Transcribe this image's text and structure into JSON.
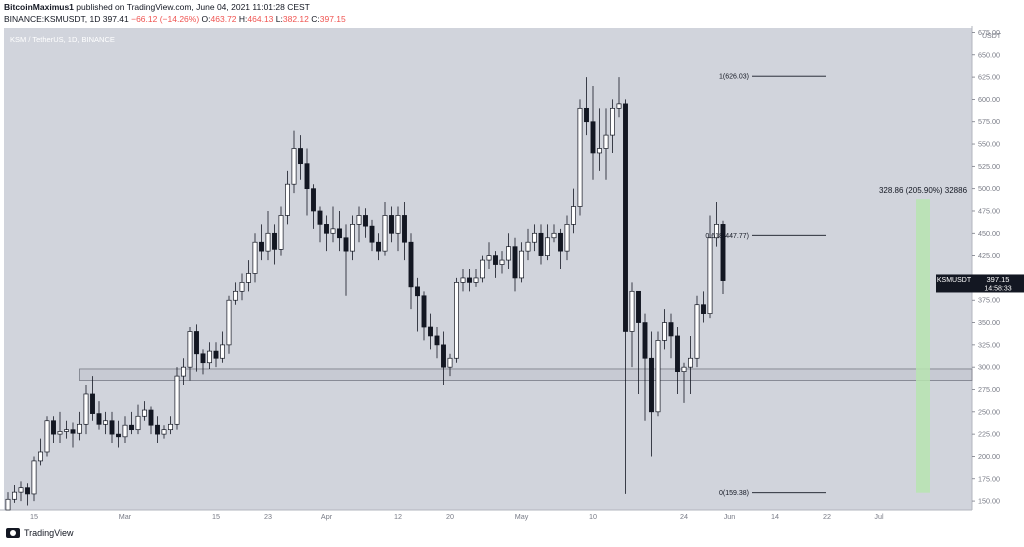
{
  "header": {
    "author": "BitcoinMaximus1",
    "published": "published on TradingView.com, June 04, 2021 11:01:28 CEST",
    "symbol": "BINANCE:KSMUSDT, 1D",
    "price": "397.41",
    "change": "−66.12 (−14.26%)",
    "o_label": "O:",
    "o_value": "463.72",
    "h_label": "H:",
    "h_value": "464.13",
    "l_label": "L:",
    "l_value": "382.12",
    "c_label": "C:",
    "c_value": "397.15"
  },
  "chart_data": {
    "type": "candlestick",
    "title": "KSM / TetherUS, 1D, BINANCE",
    "currency_label": "USDT",
    "y_ticks": [
      150,
      175,
      200,
      225,
      250,
      275,
      300,
      325,
      350,
      375,
      400,
      425,
      450,
      475,
      500,
      525,
      550,
      575,
      600,
      625,
      650,
      675
    ],
    "y_tick_labels": [
      "150.00",
      "175.00",
      "200.00",
      "225.00",
      "250.00",
      "275.00",
      "300.00",
      "325.00",
      "350.00",
      "375.00",
      "400.00",
      "425.00",
      "450.00",
      "475.00",
      "500.00",
      "525.00",
      "550.00",
      "575.00",
      "600.00",
      "625.00",
      "650.00",
      "675.00"
    ],
    "ylim": [
      140,
      680
    ],
    "x_ticks": [
      {
        "day": 0,
        "label": "15"
      },
      {
        "day": 14,
        "label": "Mar"
      },
      {
        "day": 28,
        "label": "15"
      },
      {
        "day": 36,
        "label": "23"
      },
      {
        "day": 45,
        "label": "Apr"
      },
      {
        "day": 56,
        "label": "12"
      },
      {
        "day": 64,
        "label": "20"
      },
      {
        "day": 75,
        "label": "May"
      },
      {
        "day": 86,
        "label": "10"
      },
      {
        "day": 100,
        "label": "24"
      },
      {
        "day": 107,
        "label": "Jun"
      },
      {
        "day": 114,
        "label": "14"
      },
      {
        "day": 122,
        "label": "22"
      },
      {
        "day": 130,
        "label": "Jul"
      }
    ],
    "x_range": [
      0,
      130
    ],
    "candles": [
      [
        140,
        152,
        160,
        140
      ],
      [
        152,
        160,
        168,
        148
      ],
      [
        160,
        165,
        172,
        150
      ],
      [
        165,
        158,
        170,
        145
      ],
      [
        158,
        195,
        200,
        150
      ],
      [
        195,
        205,
        220,
        190
      ],
      [
        205,
        240,
        245,
        200
      ],
      [
        240,
        225,
        245,
        215
      ],
      [
        225,
        228,
        250,
        215
      ],
      [
        228,
        230,
        240,
        220
      ],
      [
        230,
        226,
        238,
        210
      ],
      [
        226,
        236,
        250,
        218
      ],
      [
        236,
        270,
        280,
        225
      ],
      [
        270,
        248,
        290,
        240
      ],
      [
        248,
        236,
        262,
        230
      ],
      [
        236,
        240,
        250,
        225
      ],
      [
        240,
        225,
        250,
        215
      ],
      [
        225,
        222,
        240,
        210
      ],
      [
        222,
        235,
        245,
        215
      ],
      [
        235,
        230,
        250,
        225
      ],
      [
        230,
        245,
        258,
        225
      ],
      [
        245,
        252,
        262,
        240
      ],
      [
        252,
        235,
        256,
        225
      ],
      [
        235,
        225,
        245,
        215
      ],
      [
        225,
        230,
        235,
        220
      ],
      [
        230,
        236,
        245,
        225
      ],
      [
        236,
        290,
        300,
        230
      ],
      [
        290,
        300,
        310,
        280
      ],
      [
        300,
        340,
        345,
        285
      ],
      [
        340,
        315,
        348,
        295
      ],
      [
        315,
        305,
        320,
        292
      ],
      [
        305,
        318,
        328,
        298
      ],
      [
        318,
        310,
        328,
        300
      ],
      [
        310,
        325,
        340,
        305
      ],
      [
        325,
        375,
        380,
        315
      ],
      [
        375,
        385,
        395,
        370
      ],
      [
        385,
        395,
        405,
        375
      ],
      [
        395,
        405,
        420,
        385
      ],
      [
        405,
        440,
        450,
        395
      ],
      [
        440,
        430,
        460,
        420
      ],
      [
        430,
        450,
        475,
        420
      ],
      [
        450,
        432,
        460,
        415
      ],
      [
        432,
        470,
        480,
        425
      ],
      [
        470,
        505,
        520,
        460
      ],
      [
        505,
        545,
        565,
        495
      ],
      [
        545,
        528,
        560,
        510
      ],
      [
        528,
        500,
        545,
        470
      ],
      [
        500,
        475,
        505,
        455
      ],
      [
        475,
        460,
        480,
        440
      ],
      [
        460,
        450,
        470,
        430
      ],
      [
        450,
        455,
        480,
        440
      ],
      [
        455,
        445,
        475,
        430
      ],
      [
        445,
        430,
        460,
        380
      ],
      [
        430,
        460,
        470,
        420
      ],
      [
        460,
        470,
        480,
        440
      ],
      [
        470,
        458,
        478,
        445
      ],
      [
        458,
        440,
        465,
        430
      ],
      [
        440,
        430,
        450,
        420
      ],
      [
        430,
        470,
        485,
        425
      ],
      [
        470,
        450,
        480,
        440
      ],
      [
        450,
        470,
        480,
        430
      ],
      [
        470,
        440,
        485,
        420
      ],
      [
        440,
        390,
        450,
        365
      ],
      [
        390,
        380,
        400,
        340
      ],
      [
        380,
        345,
        385,
        330
      ],
      [
        345,
        335,
        360,
        320
      ],
      [
        335,
        325,
        345,
        310
      ],
      [
        325,
        300,
        340,
        280
      ],
      [
        300,
        310,
        315,
        290
      ],
      [
        310,
        395,
        400,
        305
      ],
      [
        395,
        400,
        410,
        385
      ],
      [
        400,
        395,
        410,
        385
      ],
      [
        395,
        400,
        410,
        390
      ],
      [
        400,
        420,
        425,
        395
      ],
      [
        420,
        425,
        440,
        410
      ],
      [
        425,
        415,
        430,
        400
      ],
      [
        415,
        420,
        430,
        405
      ],
      [
        420,
        435,
        450,
        410
      ],
      [
        435,
        400,
        445,
        385
      ],
      [
        400,
        430,
        440,
        395
      ],
      [
        430,
        440,
        455,
        420
      ],
      [
        440,
        450,
        460,
        430
      ],
      [
        450,
        425,
        460,
        415
      ],
      [
        425,
        445,
        460,
        420
      ],
      [
        445,
        450,
        460,
        440
      ],
      [
        450,
        430,
        455,
        410
      ],
      [
        430,
        460,
        470,
        420
      ],
      [
        460,
        480,
        500,
        450
      ],
      [
        480,
        590,
        600,
        470
      ],
      [
        590,
        575,
        625,
        560
      ],
      [
        575,
        540,
        615,
        510
      ],
      [
        540,
        545,
        590,
        520
      ],
      [
        545,
        560,
        590,
        510
      ],
      [
        560,
        590,
        600,
        540
      ],
      [
        590,
        595,
        625,
        580
      ],
      [
        595,
        340,
        600,
        158
      ],
      [
        340,
        385,
        395,
        300
      ],
      [
        385,
        350,
        385,
        270
      ],
      [
        350,
        310,
        360,
        240
      ],
      [
        310,
        250,
        340,
        200
      ],
      [
        250,
        330,
        340,
        245
      ],
      [
        330,
        350,
        365,
        320
      ],
      [
        350,
        335,
        360,
        310
      ],
      [
        335,
        295,
        345,
        270
      ],
      [
        295,
        300,
        305,
        260
      ],
      [
        300,
        310,
        335,
        270
      ],
      [
        310,
        370,
        380,
        300
      ],
      [
        370,
        360,
        385,
        350
      ],
      [
        360,
        445,
        470,
        355
      ],
      [
        445,
        460,
        485,
        435
      ],
      [
        460,
        397,
        464,
        382
      ]
    ],
    "annotations": {
      "fib_1": {
        "text": "1(626.03)",
        "value": 626.03
      },
      "fib_0618": {
        "text": "0.618(447.77)",
        "value": 447.77
      },
      "fib_0": {
        "text": "0(159.38)",
        "value": 159.38
      },
      "range": {
        "text": "328.86 (205.90%) 32886",
        "from": 159.38,
        "to": 488.24
      },
      "support_zone": {
        "from": 285,
        "to": 298
      },
      "last_price_label": "KSMUSDT",
      "last_price": "397.15",
      "countdown": "14:58:33"
    }
  },
  "footer": {
    "brand": "TradingView"
  },
  "colors": {
    "plot_bg": "#d1d4dc",
    "candle_up": "#ffffff",
    "candle_down": "#131722",
    "range_box": "#b7e4b0",
    "zone": "#c7cad3"
  }
}
